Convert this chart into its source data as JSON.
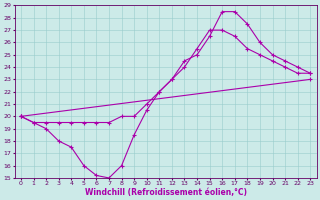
{
  "xlabel": "Windchill (Refroidissement éolien,°C)",
  "xlim": [
    -0.5,
    23.5
  ],
  "ylim": [
    15,
    29
  ],
  "xticks": [
    0,
    1,
    2,
    3,
    4,
    5,
    6,
    7,
    8,
    9,
    10,
    11,
    12,
    13,
    14,
    15,
    16,
    17,
    18,
    19,
    20,
    21,
    22,
    23
  ],
  "yticks": [
    15,
    16,
    17,
    18,
    19,
    20,
    21,
    22,
    23,
    24,
    25,
    26,
    27,
    28,
    29
  ],
  "bg_color": "#cceae8",
  "line_color": "#aa00aa",
  "grid_color": "#99cccc",
  "line1_x": [
    0,
    1,
    2,
    3,
    4,
    5,
    6,
    7,
    8,
    9,
    10,
    11,
    12,
    13,
    14,
    15,
    16,
    17,
    18,
    19,
    20,
    21,
    22,
    23
  ],
  "line1_y": [
    20,
    19.5,
    19.0,
    18.0,
    17.5,
    16.0,
    15.2,
    15.0,
    16.0,
    18.5,
    20.5,
    22.0,
    23.0,
    24.5,
    25.0,
    26.5,
    28.5,
    28.5,
    27.5,
    26.0,
    25.0,
    24.5,
    24.0,
    23.5
  ],
  "line2_x": [
    0,
    1,
    2,
    3,
    4,
    5,
    6,
    7,
    8,
    9,
    10,
    11,
    12,
    13,
    14,
    15,
    16,
    17,
    18,
    19,
    20,
    21,
    22,
    23
  ],
  "line2_y": [
    20,
    19.5,
    19.5,
    19.5,
    19.5,
    19.5,
    19.5,
    19.5,
    20.0,
    20.0,
    21.0,
    22.0,
    23.0,
    24.0,
    25.5,
    27.0,
    27.0,
    26.5,
    25.5,
    25.0,
    24.5,
    24.0,
    23.5,
    23.5
  ],
  "line3_x": [
    0,
    23
  ],
  "line3_y": [
    20,
    23
  ],
  "tick_fontsize": 4.5,
  "xlabel_fontsize": 5.5
}
